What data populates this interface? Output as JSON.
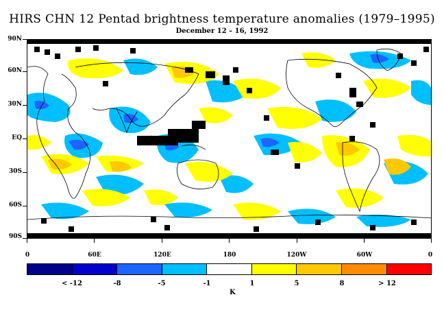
{
  "title": "HIRS CHN 12 Pentad brightness temperature anomalies (1979–1995)",
  "subtitle": "December 12 – 16, 1992",
  "lat_labels": [
    "90N",
    "60N",
    "30N",
    "EQ",
    "30S",
    "60S",
    "90S"
  ],
  "lon_labels": [
    "0",
    "60E",
    "120E",
    "180",
    "120W",
    "60W",
    "0"
  ],
  "colorbar": {
    "colors": [
      "#00008b",
      "#0000cd",
      "#1e64ff",
      "#00bfff",
      "#ffffff",
      "#ffff00",
      "#ffc800",
      "#ff8c00",
      "#ff0000"
    ],
    "labels": [
      "< -12",
      "-8",
      "-5",
      "-1",
      "1",
      "5",
      "8",
      "> 12"
    ],
    "unit": "K"
  },
  "map_colors": {
    "cold_light": "#00bfff",
    "cold_mid": "#1e64ff",
    "warm_light": "#ffff00",
    "warm_mid": "#ffc800",
    "missing": "#000000",
    "coastline": "#000000"
  }
}
